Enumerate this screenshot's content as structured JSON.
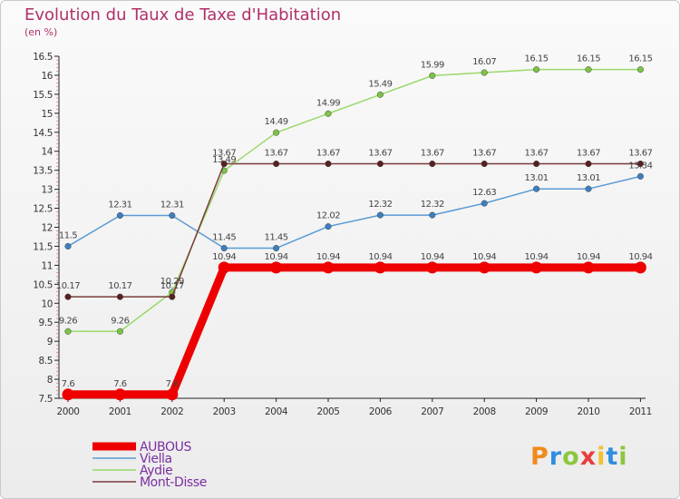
{
  "header": {
    "title": "Evolution du Taux de Taxe d'Habitation",
    "subtitle": "(en %)"
  },
  "logo": {
    "letters": [
      "P",
      "r",
      "o",
      "x",
      "i",
      "t",
      "i"
    ],
    "colors": [
      "#f08a1c",
      "#2f8ee0",
      "#8cc63f",
      "#e83e3e",
      "#f2c12e",
      "#2f8ee0",
      "#8cc63f"
    ]
  },
  "chart_data": {
    "type": "line",
    "title": "Evolution du Taux de Taxe d'Habitation",
    "ylabel": "(en %)",
    "xlabel": "",
    "x": [
      "2000",
      "2001",
      "2002",
      "2003",
      "2004",
      "2005",
      "2006",
      "2007",
      "2008",
      "2009",
      "2010",
      "2011"
    ],
    "ylim": [
      7.5,
      16.5
    ],
    "yticks": [
      "7.5",
      "8",
      "8.5",
      "9",
      "9.5",
      "10",
      "10.5",
      "11",
      "11.5",
      "12",
      "12.5",
      "13",
      "13.5",
      "14",
      "14.5",
      "15",
      "15.5",
      "16",
      "16.5"
    ],
    "grid": false,
    "legend": "bottom-left",
    "series": [
      {
        "name": "AUBOUS",
        "color": "#ee0000",
        "emphasis": true,
        "values": [
          7.6,
          7.6,
          7.6,
          10.94,
          10.94,
          10.94,
          10.94,
          10.94,
          10.94,
          10.94,
          10.94,
          10.94
        ],
        "labels": [
          "7.6",
          "7.6",
          "7.6",
          "10.94",
          "10.94",
          "10.94",
          "10.94",
          "10.94",
          "10.94",
          "10.94",
          "10.94",
          "10.94"
        ]
      },
      {
        "name": "Viella",
        "color": "#5a9bd4",
        "marker": "#3c7fc0",
        "values": [
          11.5,
          12.31,
          12.31,
          11.45,
          11.45,
          12.02,
          12.32,
          12.32,
          12.63,
          13.01,
          13.01,
          13.34
        ],
        "labels": [
          "11.5",
          "12.31",
          "12.31",
          "11.45",
          "11.45",
          "12.02",
          "12.32",
          "12.32",
          "12.63",
          "13.01",
          "13.01",
          "13.34"
        ]
      },
      {
        "name": "Aydie",
        "color": "#9ad96a",
        "marker": "#7cc444",
        "values": [
          9.26,
          9.26,
          10.29,
          13.49,
          14.49,
          14.99,
          15.49,
          15.99,
          16.07,
          16.15,
          16.15,
          16.15
        ],
        "labels": [
          "9.26",
          "9.26",
          "10.29",
          "13.49",
          "14.49",
          "14.99",
          "15.49",
          "15.99",
          "16.07",
          "16.15",
          "16.15",
          "16.15"
        ]
      },
      {
        "name": "Mont-Disse",
        "color": "#7a3b3b",
        "marker": "#5a1f1f",
        "values": [
          10.17,
          10.17,
          10.17,
          13.67,
          13.67,
          13.67,
          13.67,
          13.67,
          13.67,
          13.67,
          13.67,
          13.67
        ],
        "labels": [
          "10.17",
          "10.17",
          "10.17",
          "13.67",
          "13.67",
          "13.67",
          "13.67",
          "13.67",
          "13.67",
          "13.67",
          "13.67",
          "13.67"
        ]
      }
    ]
  }
}
